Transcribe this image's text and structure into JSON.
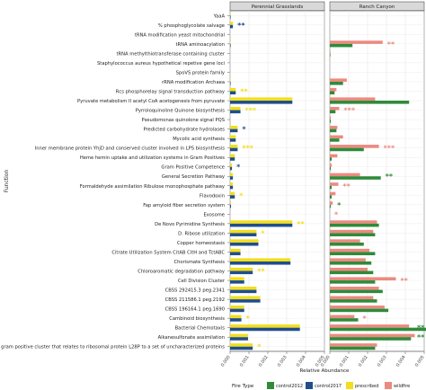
{
  "chart_data": {
    "type": "bar",
    "orientation": "horizontal",
    "ylabel": "Function",
    "xlabel": "Relative Abundance",
    "xlim": [
      0,
      0.005
    ],
    "xticks": [
      0,
      0.001,
      0.002,
      0.003,
      0.004,
      0.005
    ],
    "xtick_labels": [
      "0.000",
      "0.001",
      "0.002",
      "0.003",
      "0.004",
      "0.005"
    ],
    "grid": true,
    "legend_position": "bottom",
    "legend_title": "Fire Type",
    "series": [
      {
        "name": "control2012",
        "color": "#2e8b3a"
      },
      {
        "name": "control2017",
        "color": "#1f4e8c"
      },
      {
        "name": "prescribed",
        "color": "#f2de1c"
      },
      {
        "name": "wildfire",
        "color": "#ec8a7f"
      }
    ],
    "categories": [
      "YaaA",
      "% phosphoglycolate salvage",
      "tRNA modification yeast mitochondrial",
      "tRNA aminoacylation",
      "tRNA methylthiotransferase containing cluster",
      "Staphylococcus aureus hypothetical repetive gene loci",
      "SpoVS protein family",
      "rRNA modification Archaea",
      "Rcs phosphorelay signal transduction pathway",
      "Pyruvate metabolism II acetyl CoA acetogenesis from pyruvate",
      "Pyrroloquinoline Quinone biosynthesis",
      "Pseudomonas quinolone signal PQS",
      "Predicted carbohydrate hydrolases",
      "Mycolic acid synthesis",
      "Inner membrane protein YhjD and conserved cluster involved in LPS biosynthesis",
      "Heme hemin uptake and utilization systems in Gram Positives",
      "Gram Positive Competence",
      "General Secretion Pathway",
      "Formaldehyde assimilation Ribulose monophosphate pathway",
      "Flavodoxin",
      "Fap amyloid fiber secretion system",
      "Exosome",
      "De Novo Pyrimidine Synthesis",
      "D. Ribose utilization",
      "Copper homeostasis",
      "Citrate Utilization System CitAB CitH and TctABC",
      "Chorismate Synthesis",
      "Chloroaromatic degradation pathway",
      "Cell Division Cluster",
      "CBSS 292415.3 peg.2341",
      "CBSS 211586.1 peg.2192",
      "CBSS 196164.1 peg.1690",
      "Cambinoid biosynthesis",
      "Bacterial Chemotaxis",
      "Alkanesulfonate assimilation",
      "A gram positive cluster that relates to ribosomal protein L28P to a set of uncharacterized proteins"
    ],
    "panels": [
      {
        "title": "Perennial Grasslands",
        "bars": [
          {
            "series": "prescribed",
            "values": [
              3e-05,
              0.00015,
              0,
              3e-05,
              0,
              0,
              0,
              3e-05,
              0.0003,
              0.0033,
              0.00055,
              0,
              0.0004,
              0.0003,
              0.0004,
              0.00025,
              0.0001,
              0.00015,
              0.00015,
              0.00025,
              5e-05,
              0,
              0.0033,
              0.0014,
              0.0015,
              0.00055,
              0.0032,
              0.0012,
              0.00075,
              0.0014,
              0.0016,
              0.00075,
              0.0006,
              0.0037,
              0.00095,
              0.0012
            ]
          },
          {
            "series": "control2017",
            "values": [
              3e-05,
              0.00015,
              0,
              3e-05,
              0,
              0,
              0,
              3e-05,
              0.0003,
              0.0033,
              0.00055,
              0,
              0.0004,
              0.0003,
              0.0004,
              0.00025,
              0.0001,
              0.00015,
              0.00015,
              0.00025,
              5e-05,
              0,
              0.0033,
              0.0014,
              0.0015,
              0.00055,
              0.0032,
              0.0012,
              0.00075,
              0.0014,
              0.0016,
              0.00075,
              0.0006,
              0.0037,
              0.00095,
              0.0012
            ]
          }
        ],
        "significance": [
          {
            "category": "% phosphoglycolate salvage",
            "label": "**",
            "color": "#1f4e8c"
          },
          {
            "category": "Rcs phosphorelay signal transduction pathway",
            "label": "**",
            "color": "#f2de1c"
          },
          {
            "category": "Pyrroloquinoline Quinone biosynthesis",
            "label": "***",
            "color": "#f2de1c"
          },
          {
            "category": "Predicted carbohydrate hydrolases",
            "label": "*",
            "color": "#1f4e8c"
          },
          {
            "category": "Inner membrane protein YhjD and conserved cluster involved in LPS biosynthesis",
            "label": "***",
            "color": "#f2de1c"
          },
          {
            "category": "Gram Positive Competence",
            "label": "*",
            "color": "#1f4e8c"
          },
          {
            "category": "Flavodoxin",
            "label": "*",
            "color": "#f2de1c"
          },
          {
            "category": "De Novo Pyrimidine Synthesis",
            "label": "**",
            "color": "#f2de1c"
          },
          {
            "category": "D. Ribose utilization",
            "label": "*",
            "color": "#f2de1c"
          },
          {
            "category": "Chloroaromatic degradation pathway",
            "label": "**",
            "color": "#f2de1c"
          },
          {
            "category": "Cambinoid biosynthesis",
            "label": "*",
            "color": "#f2de1c"
          },
          {
            "category": "A gram positive cluster that relates to ribosomal protein L28P to a set of uncharacterized proteins",
            "label": "*",
            "color": "#f2de1c"
          }
        ]
      },
      {
        "title": "Ranch Canyon",
        "bars": [
          {
            "series": "wildfire",
            "values": [
              0,
              0,
              0,
              0.0028,
              3e-05,
              0,
              0,
              0.0009,
              0.00035,
              0.0024,
              0.0005,
              5e-05,
              0.0004,
              0.0007,
              0.0026,
              0.0004,
              0.0001,
              0.0016,
              0.00045,
              0.0003,
              0.00015,
              0,
              0.0025,
              0.0023,
              0.0016,
              0.0021,
              0.0019,
              0.002,
              0.0035,
              0.0026,
              0.0023,
              0.0029,
              0.0013,
              0.0042,
              0.0045,
              0.0025
            ]
          },
          {
            "series": "control2012",
            "values": [
              0,
              0,
              0,
              0.0012,
              3e-05,
              0,
              0,
              0.0007,
              0.00025,
              0.0042,
              0.0003,
              5e-05,
              0.00035,
              0.0005,
              0.0018,
              0.0001,
              5e-05,
              0.0027,
              0.0001,
              0.0001,
              5e-05,
              0,
              0.0026,
              0.0024,
              0.0018,
              0.0024,
              0.0022,
              0.0023,
              0.0024,
              0.0028,
              0.0025,
              0.0031,
              0.0015,
              0.0053,
              0.0043,
              0.0024
            ]
          }
        ],
        "significance": [
          {
            "category": "tRNA aminoacylation",
            "label": "**",
            "color": "#ec8a7f"
          },
          {
            "category": "Pyrroloquinoline Quinone biosynthesis",
            "label": "***",
            "color": "#ec8a7f"
          },
          {
            "category": "Inner membrane protein YhjD and conserved cluster involved in LPS biosynthesis",
            "label": "***",
            "color": "#ec8a7f"
          },
          {
            "category": "General Secretion Pathway",
            "label": "**",
            "color": "#2e8b3a"
          },
          {
            "category": "Formaldehyde assimilation Ribulose monophosphate pathway",
            "label": "**",
            "color": "#ec8a7f"
          },
          {
            "category": "Fap amyloid fiber secretion system",
            "label": "*",
            "color": "#2e8b3a"
          },
          {
            "category": "Exosome",
            "label": "*",
            "color": "#ec8a7f"
          },
          {
            "category": "Cell Division Cluster",
            "label": "**",
            "color": "#ec8a7f"
          },
          {
            "category": "Cambinoid biosynthesis",
            "label": "*",
            "color": "#ec8a7f"
          },
          {
            "category": "Bacterial Chemotaxis",
            "label": "**",
            "color": "#2e8b3a"
          },
          {
            "category": "Alkanesulfonate assimilation",
            "label": "**",
            "color": "#2e8b3a"
          }
        ]
      }
    ]
  }
}
